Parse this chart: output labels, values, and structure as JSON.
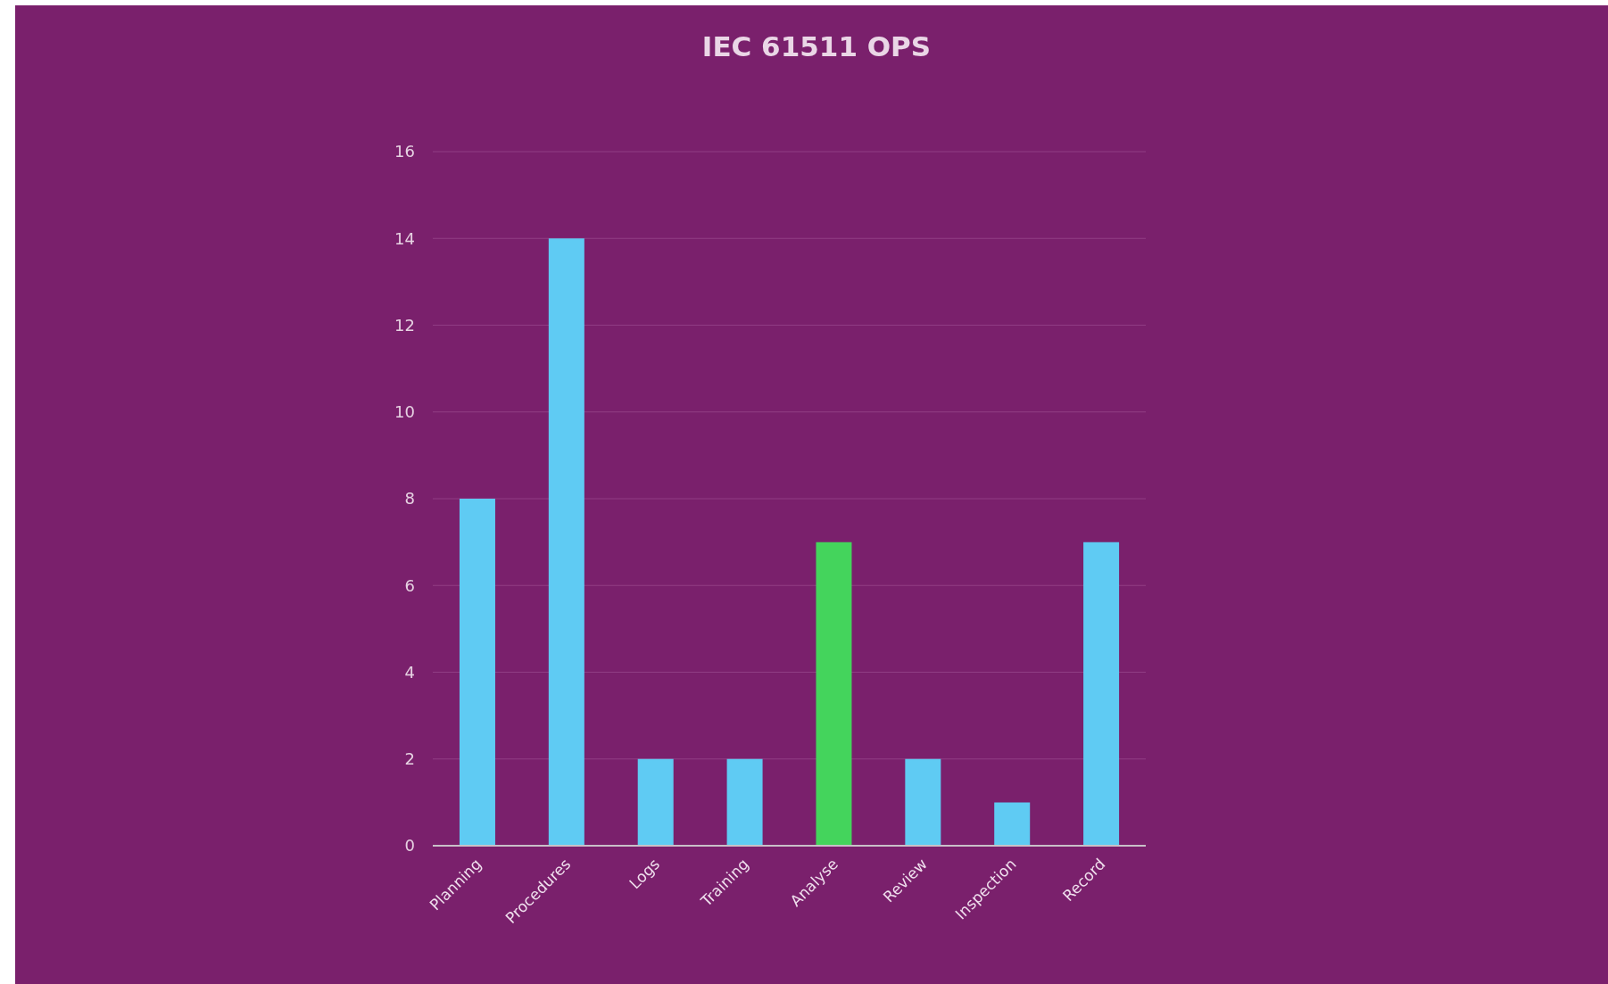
{
  "chart_data": {
    "type": "bar",
    "title": "IEC 61511 OPS",
    "categories": [
      "Planning",
      "Procedures",
      "Logs",
      "Training",
      "Analyse",
      "Review",
      "Inspection",
      "Record"
    ],
    "values": [
      8,
      14,
      2,
      2,
      7,
      2,
      1,
      7
    ],
    "colors": [
      "#5fcbf3",
      "#5fcbf3",
      "#5fcbf3",
      "#5fcbf3",
      "#44d45c",
      "#5fcbf3",
      "#5fcbf3",
      "#5fcbf3"
    ],
    "ylim": [
      0,
      16
    ],
    "yticks": [
      0,
      2,
      4,
      6,
      8,
      10,
      12,
      14,
      16
    ],
    "grid": "y",
    "legend": false
  }
}
